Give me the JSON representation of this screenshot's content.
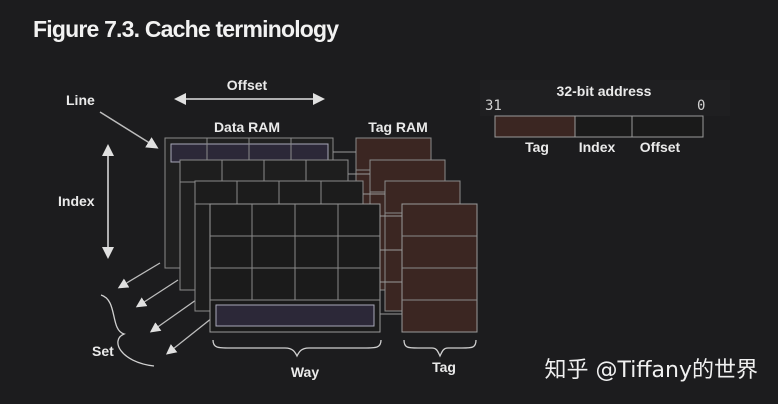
{
  "figure": {
    "title": "Figure 7.3. Cache terminology"
  },
  "labels": {
    "offset": "Offset",
    "line": "Line",
    "data_ram": "Data RAM",
    "tag_ram": "Tag RAM",
    "index": "Index",
    "set": "Set",
    "way": "Way",
    "tag": "Tag"
  },
  "address": {
    "title": "32-bit address",
    "msb": "31",
    "lsb": "0",
    "fields": [
      "Tag",
      "Index",
      "Offset"
    ]
  },
  "colors": {
    "background": "#1c1c1e",
    "cell": "#202020",
    "grid": "#8a8a8a",
    "tag_fill": "#3b2622",
    "line_highlight": "#2c2838"
  },
  "watermark": "知乎 @Tiffany的世界"
}
